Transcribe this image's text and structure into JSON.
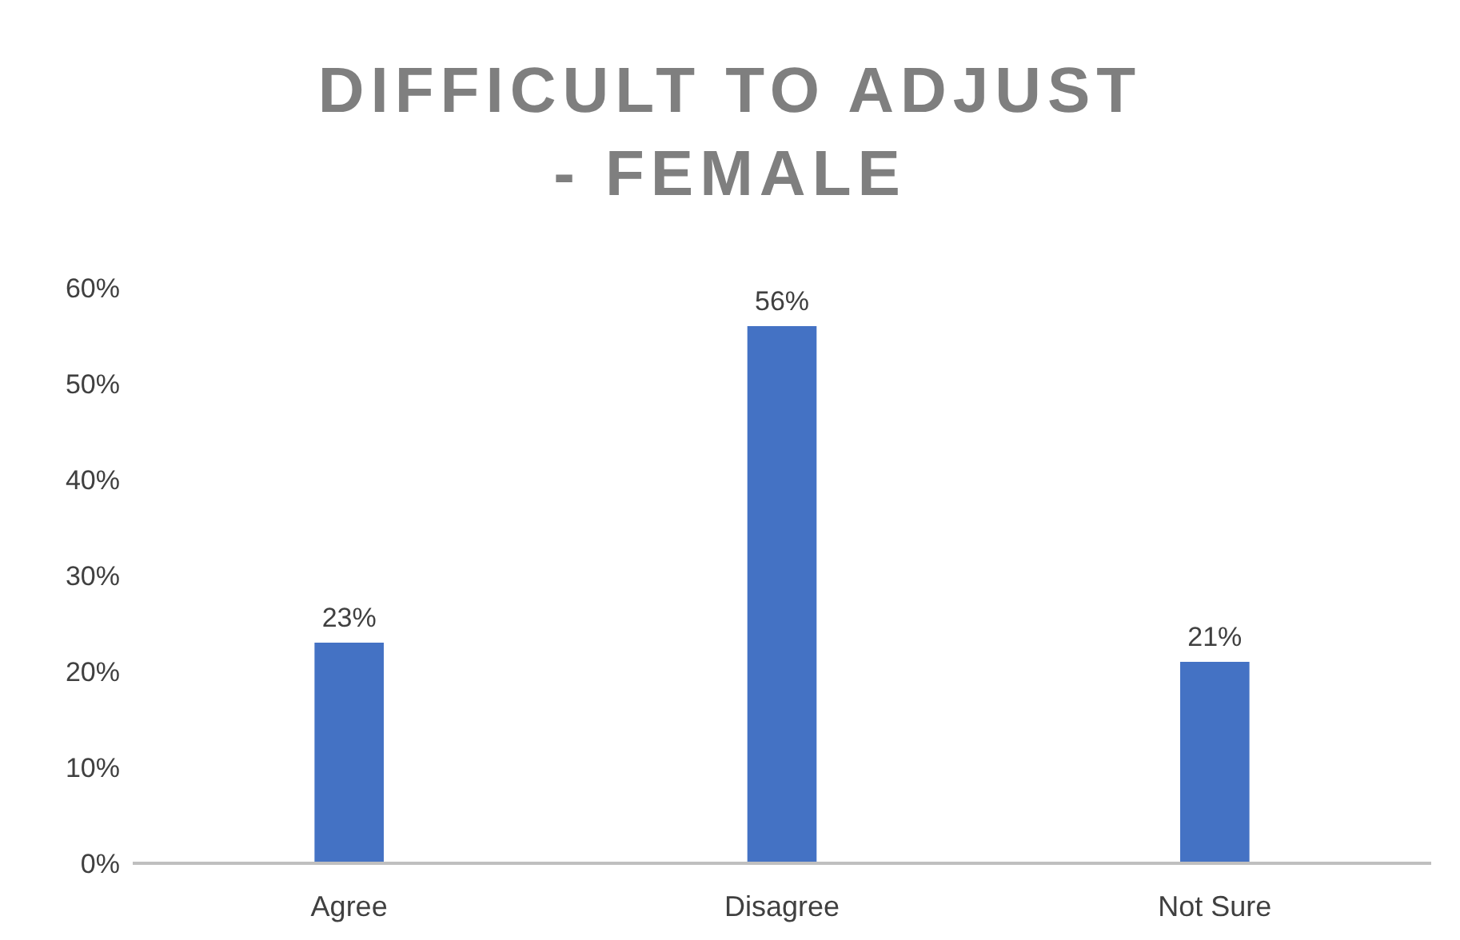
{
  "chart_data": {
    "type": "bar",
    "title": "DIFFICULT TO ADJUST - FEMALE",
    "categories": [
      "Agree",
      "Disagree",
      "Not Sure"
    ],
    "values": [
      23,
      56,
      21
    ],
    "value_labels": [
      "23%",
      "56%",
      "21%"
    ],
    "color": "#4472c4",
    "ylim": [
      0,
      60
    ],
    "yticks": [
      {
        "value": 0,
        "label": "0%"
      },
      {
        "value": 10,
        "label": "10%"
      },
      {
        "value": 20,
        "label": "20%"
      },
      {
        "value": 30,
        "label": "30%"
      },
      {
        "value": 40,
        "label": "40%"
      },
      {
        "value": 50,
        "label": "50%"
      },
      {
        "value": 60,
        "label": "60%"
      }
    ],
    "grid": false,
    "legend": false
  }
}
